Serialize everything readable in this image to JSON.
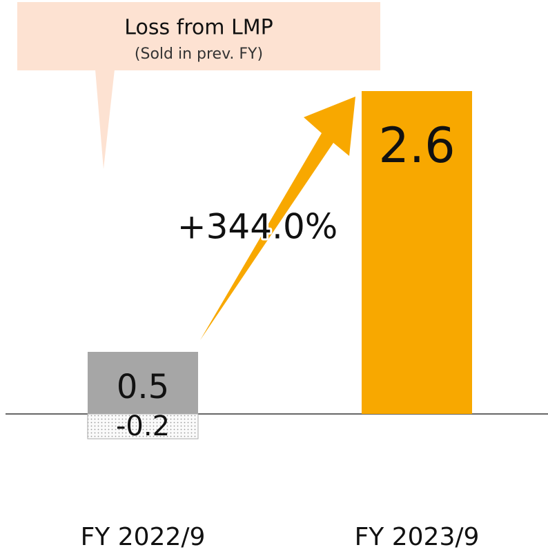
{
  "chart_data": {
    "type": "bar",
    "categories": [
      "FY 2022/9",
      "FY 2023/9"
    ],
    "series": [
      {
        "color": "#a6a6a6",
        "values": [
          0.5,
          null
        ]
      },
      {
        "color": "#f8a800",
        "values": [
          null,
          2.6
        ]
      },
      {
        "color": "#dcdcdc",
        "pattern": "dotted",
        "values": [
          -0.2,
          null
        ]
      }
    ],
    "annotations": {
      "callout_title": "Loss from LMP",
      "callout_subtitle": "(Sold in prev. FY)",
      "growth": "+344.0%"
    }
  }
}
